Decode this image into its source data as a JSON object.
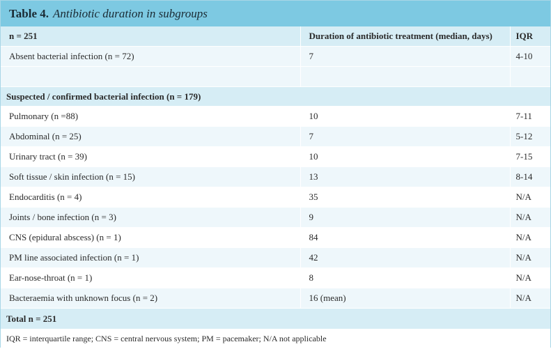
{
  "table": {
    "label": "Table 4.",
    "caption": "Antibiotic duration in subgroups",
    "header": [
      "n = 251",
      "Duration of antibiotic treatment (median, days)",
      "IQR"
    ],
    "absent": {
      "label": "Absent bacterial infection (n = 72)",
      "duration": "7",
      "iqr": "4-10"
    },
    "section_label": "Suspected / confirmed bacterial infection (n = 179)",
    "rows": [
      {
        "label": "Pulmonary (n =88)",
        "duration": "10",
        "iqr": "7-11"
      },
      {
        "label": "Abdominal (n = 25)",
        "duration": "7",
        "iqr": "5-12"
      },
      {
        "label": "Urinary tract (n = 39)",
        "duration": "10",
        "iqr": "7-15"
      },
      {
        "label": "Soft tissue / skin infection (n = 15)",
        "duration": "13",
        "iqr": "8-14"
      },
      {
        "label": "Endocarditis (n = 4)",
        "duration": "35",
        "iqr": "N/A"
      },
      {
        "label": "Joints / bone infection (n = 3)",
        "duration": "9",
        "iqr": "N/A"
      },
      {
        "label": "CNS (epidural abscess) (n = 1)",
        "duration": "84",
        "iqr": "N/A"
      },
      {
        "label": "PM line associated infection (n = 1)",
        "duration": "42",
        "iqr": "N/A"
      },
      {
        "label": "Ear-nose-throat (n = 1)",
        "duration": "8",
        "iqr": "N/A"
      },
      {
        "label": "Bacteraemia with unknown focus (n = 2)",
        "duration": "16 (mean)",
        "iqr": "N/A"
      }
    ],
    "total": "Total n = 251",
    "footnote": "IQR = interquartile range; CNS = central nervous system; PM = pacemaker; N/A not applicable"
  },
  "colors": {
    "title_bar": "#7dc9e2",
    "header_row": "#d6edf5",
    "light_row": "#eef7fb"
  }
}
